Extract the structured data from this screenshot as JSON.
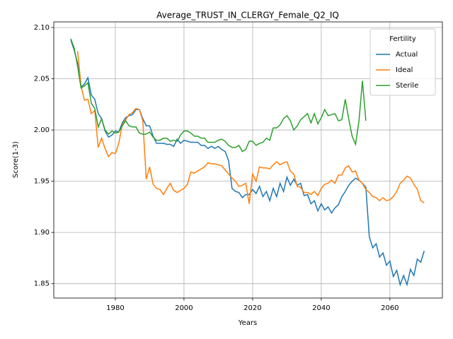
{
  "chart_data": {
    "type": "line",
    "title": "Average_TRUST_IN_CLERGY_Female_Q2_IQ",
    "x_label": "Years",
    "y_label": "Score(1-3)",
    "x": [
      1967,
      1968,
      1969,
      1970,
      1971,
      1972,
      1973,
      1974,
      1975,
      1976,
      1977,
      1978,
      1979,
      1980,
      1981,
      1982,
      1983,
      1984,
      1985,
      1986,
      1987,
      1988,
      1989,
      1990,
      1991,
      1992,
      1993,
      1994,
      1995,
      1996,
      1997,
      1998,
      1999,
      2000,
      2001,
      2002,
      2003,
      2004,
      2005,
      2006,
      2007,
      2008,
      2009,
      2010,
      2011,
      2012,
      2013,
      2014,
      2015,
      2016,
      2017,
      2018,
      2019,
      2020,
      2021,
      2022,
      2023,
      2024,
      2025,
      2026,
      2027,
      2028,
      2029,
      2030,
      2031,
      2032,
      2033,
      2034,
      2035,
      2036,
      2037,
      2038,
      2039,
      2040,
      2041,
      2042,
      2043,
      2044,
      2045,
      2046,
      2047,
      2048,
      2049,
      2050,
      2051,
      2052,
      2053,
      2054,
      2055,
      2056,
      2057,
      2058,
      2059,
      2060,
      2061,
      2062,
      2063,
      2064,
      2065,
      2066,
      2067,
      2068,
      2069,
      2070
    ],
    "series": [
      {
        "name": "Actual",
        "color": "#1f77b4",
        "values": [
          2.088,
          2.078,
          2.065,
          2.042,
          2.045,
          2.051,
          2.034,
          2.03,
          2.016,
          2.011,
          1.999,
          1.993,
          1.995,
          1.999,
          1.998,
          2.007,
          2.012,
          2.014,
          2.015,
          2.02,
          2.02,
          2.011,
          2.004,
          2.004,
          1.994,
          1.987,
          1.987,
          1.987,
          1.986,
          1.986,
          1.984,
          1.991,
          1.987,
          1.99,
          1.989,
          1.988,
          1.988,
          1.988,
          1.985,
          1.985,
          1.982,
          1.984,
          1.982,
          1.984,
          1.981,
          1.979,
          1.97,
          1.943,
          1.94,
          1.939,
          1.934,
          1.937,
          1.937,
          1.942,
          1.938,
          1.945,
          1.935,
          1.94,
          1.931,
          1.943,
          1.935,
          1.948,
          1.94,
          1.954,
          1.946,
          1.952,
          1.946,
          1.948,
          1.936,
          1.937,
          1.928,
          1.931,
          1.921,
          1.928,
          1.922,
          1.925,
          1.919,
          1.924,
          1.927,
          1.935,
          1.94,
          1.946,
          1.95,
          1.953,
          1.951,
          1.948,
          1.944,
          1.896,
          1.885,
          1.889,
          1.876,
          1.88,
          1.868,
          1.872,
          1.857,
          1.863,
          1.849,
          1.858,
          1.849,
          1.864,
          1.858,
          1.874,
          1.871,
          1.882
        ]
      },
      {
        "name": "Ideal",
        "color": "#ff7f0e",
        "values": [
          null,
          null,
          2.077,
          2.043,
          2.029,
          2.03,
          2.016,
          2.019,
          1.983,
          1.992,
          1.982,
          1.974,
          1.978,
          1.977,
          1.987,
          2.005,
          2.01,
          2.015,
          2.017,
          2.021,
          2.02,
          2.009,
          1.952,
          1.964,
          1.947,
          1.943,
          1.942,
          1.937,
          1.943,
          1.948,
          1.941,
          1.939,
          1.941,
          1.943,
          1.947,
          1.959,
          1.958,
          1.96,
          1.962,
          1.964,
          1.968,
          1.967,
          1.967,
          1.966,
          1.965,
          1.961,
          1.957,
          1.953,
          1.95,
          1.945,
          1.946,
          1.948,
          1.928,
          1.957,
          1.95,
          1.964,
          1.963,
          1.963,
          1.962,
          1.966,
          1.969,
          1.966,
          1.968,
          1.969,
          1.96,
          1.957,
          1.945,
          1.944,
          1.939,
          1.939,
          1.937,
          1.94,
          1.936,
          1.943,
          1.947,
          1.948,
          1.951,
          1.948,
          1.956,
          1.956,
          1.963,
          1.965,
          1.959,
          1.96,
          1.951,
          1.948,
          1.942,
          1.939,
          1.935,
          1.934,
          1.931,
          1.934,
          1.931,
          1.932,
          1.935,
          1.94,
          1.948,
          1.951,
          1.955,
          1.953,
          1.947,
          1.942,
          1.931,
          1.929
        ]
      },
      {
        "name": "Sterile",
        "color": "#2ca02c",
        "values": [
          2.089,
          2.08,
          2.062,
          2.041,
          2.043,
          2.046,
          2.026,
          2.021,
          2.003,
          2.011,
          2.0,
          1.996,
          1.999,
          1.997,
          1.998,
          2.004,
          2.009,
          2.004,
          2.003,
          2.003,
          1.997,
          1.996,
          1.996,
          1.998,
          1.993,
          1.99,
          1.99,
          1.992,
          1.992,
          1.989,
          1.99,
          1.989,
          1.995,
          1.999,
          1.999,
          1.997,
          1.994,
          1.994,
          1.992,
          1.992,
          1.988,
          1.988,
          1.988,
          1.99,
          1.991,
          1.989,
          1.985,
          1.983,
          1.983,
          1.985,
          1.979,
          1.981,
          1.989,
          1.989,
          1.985,
          1.987,
          1.988,
          1.992,
          1.99,
          2.002,
          2.002,
          2.005,
          2.011,
          2.014,
          2.009,
          2.0,
          2.004,
          2.01,
          2.013,
          2.016,
          2.007,
          2.016,
          2.006,
          2.012,
          2.02,
          2.014,
          2.015,
          2.016,
          2.009,
          2.01,
          2.03,
          2.011,
          1.994,
          1.986,
          2.009,
          2.048,
          2.009,
          null,
          null,
          null,
          null,
          null,
          null,
          null,
          null,
          null,
          null,
          null,
          null,
          null,
          null,
          null,
          null,
          null
        ]
      }
    ],
    "xlim": [
      1962.06,
      2075.3
    ],
    "ylim": [
      1.836,
      2.1055
    ],
    "xticks": [
      1980,
      2000,
      2020,
      2040,
      2060
    ],
    "yticks": [
      1.85,
      {
        "value": 1.9,
        "label": "1.90"
      },
      1.95,
      {
        "value": 2,
        "label": "2.00"
      },
      2.05,
      {
        "value": 2.1,
        "label": "2.10"
      }
    ],
    "grid": true,
    "legend_title": "Fertility",
    "legend_position": "upper right"
  }
}
